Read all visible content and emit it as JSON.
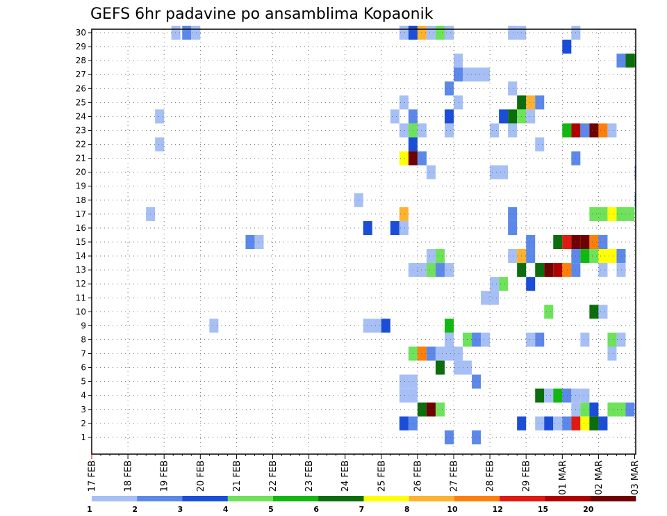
{
  "chart_data": {
    "type": "heatmap",
    "title": "GEFS 6hr padavine po ansamblima Kopaonik",
    "y_range": [
      0,
      30
    ],
    "y_ticks": [
      1,
      2,
      3,
      4,
      5,
      6,
      7,
      8,
      9,
      10,
      11,
      12,
      13,
      14,
      15,
      16,
      17,
      18,
      19,
      20,
      21,
      22,
      23,
      24,
      25,
      26,
      27,
      28,
      29,
      30
    ],
    "x_tick_labels": [
      "17 FEB",
      "18 FEB",
      "19 FEB",
      "20 FEB",
      "21 FEB",
      "22 FEB",
      "23 FEB",
      "24 FEB",
      "25 FEB",
      "26 FEB",
      "27 FEB",
      "28 FEB",
      "29 FEB",
      "01 MAR",
      "02 MAR",
      "03 MAR"
    ],
    "grid": true,
    "legend_placement": "bottom",
    "colorbar": {
      "labels": [
        "1",
        "2",
        "3",
        "4",
        "5",
        "6",
        "7",
        "8",
        "10",
        "12",
        "15",
        "20"
      ],
      "colors": [
        "#a6bff5",
        "#5c88ea",
        "#1a4ed8",
        "#6ee25a",
        "#12b812",
        "#0b6d0b",
        "#ffff00",
        "#ffb22e",
        "#ff7f0a",
        "#e01a10",
        "#b00000",
        "#6e0000"
      ]
    },
    "cells": [
      {
        "day": 19.2,
        "member": 30,
        "level": 1
      },
      {
        "day": 19.5,
        "member": 30,
        "level": 2
      },
      {
        "day": 19.75,
        "member": 30,
        "level": 1
      },
      {
        "day": 25.5,
        "member": 30,
        "level": 1
      },
      {
        "day": 25.75,
        "member": 30,
        "level": 3
      },
      {
        "day": 26,
        "member": 30,
        "level": 8
      },
      {
        "day": 26.25,
        "member": 30,
        "level": 1
      },
      {
        "day": 26.5,
        "member": 30,
        "level": 4
      },
      {
        "day": 26.75,
        "member": 30,
        "level": 1
      },
      {
        "day": 28.5,
        "member": 30,
        "level": 1
      },
      {
        "day": 28.75,
        "member": 30,
        "level": 1
      },
      {
        "day": 30.25,
        "member": 30,
        "level": 1
      },
      {
        "day": 30,
        "member": 29,
        "level": 3
      },
      {
        "day": 27,
        "member": 28,
        "level": 1
      },
      {
        "day": 31.5,
        "member": 28,
        "level": 2
      },
      {
        "day": 31.75,
        "member": 28,
        "level": 6
      },
      {
        "day": 32,
        "member": 28,
        "level": 5
      },
      {
        "day": 27,
        "member": 27,
        "level": 2
      },
      {
        "day": 27.25,
        "member": 27,
        "level": 1
      },
      {
        "day": 27.5,
        "member": 27,
        "level": 1
      },
      {
        "day": 27.75,
        "member": 27,
        "level": 1
      },
      {
        "day": 26.75,
        "member": 26,
        "level": 2
      },
      {
        "day": 28.5,
        "member": 26,
        "level": 1
      },
      {
        "day": 25.5,
        "member": 25,
        "level": 1
      },
      {
        "day": 27,
        "member": 25,
        "level": 1
      },
      {
        "day": 28.75,
        "member": 25,
        "level": 6
      },
      {
        "day": 29,
        "member": 25,
        "level": 8
      },
      {
        "day": 29.25,
        "member": 25,
        "level": 2
      },
      {
        "day": 18.75,
        "member": 24,
        "level": 1
      },
      {
        "day": 25.25,
        "member": 24,
        "level": 1
      },
      {
        "day": 25.75,
        "member": 24,
        "level": 2
      },
      {
        "day": 26.75,
        "member": 24,
        "level": 3
      },
      {
        "day": 28.25,
        "member": 24,
        "level": 3
      },
      {
        "day": 28.5,
        "member": 24,
        "level": 6
      },
      {
        "day": 28.75,
        "member": 24,
        "level": 4
      },
      {
        "day": 29,
        "member": 24,
        "level": 1
      },
      {
        "day": 25.5,
        "member": 23,
        "level": 1
      },
      {
        "day": 25.75,
        "member": 23,
        "level": 4
      },
      {
        "day": 26,
        "member": 23,
        "level": 1
      },
      {
        "day": 26.75,
        "member": 23,
        "level": 1
      },
      {
        "day": 28,
        "member": 23,
        "level": 1
      },
      {
        "day": 28.5,
        "member": 23,
        "level": 1
      },
      {
        "day": 30,
        "member": 23,
        "level": 5
      },
      {
        "day": 30.25,
        "member": 23,
        "level": 11
      },
      {
        "day": 30.5,
        "member": 23,
        "level": 2
      },
      {
        "day": 30.75,
        "member": 23,
        "level": 12
      },
      {
        "day": 31,
        "member": 23,
        "level": 9
      },
      {
        "day": 31.25,
        "member": 23,
        "level": 1
      },
      {
        "day": 18.75,
        "member": 22,
        "level": 1
      },
      {
        "day": 25.75,
        "member": 22,
        "level": 3
      },
      {
        "day": 29.25,
        "member": 22,
        "level": 1
      },
      {
        "day": 25.5,
        "member": 21,
        "level": 7
      },
      {
        "day": 25.75,
        "member": 21,
        "level": 12
      },
      {
        "day": 26,
        "member": 21,
        "level": 2
      },
      {
        "day": 30.25,
        "member": 21,
        "level": 2
      },
      {
        "day": 26.25,
        "member": 20,
        "level": 1
      },
      {
        "day": 28,
        "member": 20,
        "level": 1
      },
      {
        "day": 28.25,
        "member": 20,
        "level": 1
      },
      {
        "day": 32,
        "member": 20,
        "level": 2
      },
      {
        "day": 32.2,
        "member": 20,
        "level": 3
      },
      {
        "day": 24.25,
        "member": 18,
        "level": 1
      },
      {
        "day": 32,
        "member": 18,
        "level": 2
      },
      {
        "day": 18.5,
        "member": 17,
        "level": 1
      },
      {
        "day": 25.5,
        "member": 17,
        "level": 8
      },
      {
        "day": 28.5,
        "member": 17,
        "level": 2
      },
      {
        "day": 30.75,
        "member": 17,
        "level": 4
      },
      {
        "day": 31,
        "member": 17,
        "level": 4
      },
      {
        "day": 31.25,
        "member": 17,
        "level": 7
      },
      {
        "day": 31.5,
        "member": 17,
        "level": 4
      },
      {
        "day": 31.75,
        "member": 17,
        "level": 4
      },
      {
        "day": 32.2,
        "member": 17,
        "level": 3
      },
      {
        "day": 24.5,
        "member": 16,
        "level": 3
      },
      {
        "day": 25.25,
        "member": 16,
        "level": 3
      },
      {
        "day": 25.5,
        "member": 16,
        "level": 1
      },
      {
        "day": 28.5,
        "member": 16,
        "level": 2
      },
      {
        "day": 21.25,
        "member": 15,
        "level": 2
      },
      {
        "day": 21.5,
        "member": 15,
        "level": 1
      },
      {
        "day": 29,
        "member": 15,
        "level": 2
      },
      {
        "day": 29.75,
        "member": 15,
        "level": 6
      },
      {
        "day": 30,
        "member": 15,
        "level": 10
      },
      {
        "day": 30.25,
        "member": 15,
        "level": 12
      },
      {
        "day": 30.5,
        "member": 15,
        "level": 12
      },
      {
        "day": 30.75,
        "member": 15,
        "level": 9
      },
      {
        "day": 31,
        "member": 15,
        "level": 2
      },
      {
        "day": 26.25,
        "member": 14,
        "level": 1
      },
      {
        "day": 26.5,
        "member": 14,
        "level": 4
      },
      {
        "day": 28.5,
        "member": 14,
        "level": 1
      },
      {
        "day": 28.75,
        "member": 14,
        "level": 8
      },
      {
        "day": 29,
        "member": 14,
        "level": 2
      },
      {
        "day": 30.25,
        "member": 14,
        "level": 2
      },
      {
        "day": 30.5,
        "member": 14,
        "level": 5
      },
      {
        "day": 30.75,
        "member": 14,
        "level": 4
      },
      {
        "day": 31,
        "member": 14,
        "level": 7
      },
      {
        "day": 31.25,
        "member": 14,
        "level": 7
      },
      {
        "day": 31.5,
        "member": 14,
        "level": 2
      },
      {
        "day": 25.75,
        "member": 13,
        "level": 1
      },
      {
        "day": 26,
        "member": 13,
        "level": 1
      },
      {
        "day": 26.25,
        "member": 13,
        "level": 4
      },
      {
        "day": 26.5,
        "member": 13,
        "level": 2
      },
      {
        "day": 26.75,
        "member": 13,
        "level": 1
      },
      {
        "day": 28.75,
        "member": 13,
        "level": 6
      },
      {
        "day": 29.25,
        "member": 13,
        "level": 6
      },
      {
        "day": 29.5,
        "member": 13,
        "level": 12
      },
      {
        "day": 29.75,
        "member": 13,
        "level": 11
      },
      {
        "day": 30,
        "member": 13,
        "level": 9
      },
      {
        "day": 30.25,
        "member": 13,
        "level": 2
      },
      {
        "day": 31,
        "member": 13,
        "level": 1
      },
      {
        "day": 31.5,
        "member": 13,
        "level": 1
      },
      {
        "day": 28,
        "member": 12,
        "level": 1
      },
      {
        "day": 28.25,
        "member": 12,
        "level": 4
      },
      {
        "day": 29,
        "member": 12,
        "level": 3
      },
      {
        "day": 27.75,
        "member": 11,
        "level": 1
      },
      {
        "day": 28,
        "member": 11,
        "level": 1
      },
      {
        "day": 29.5,
        "member": 10,
        "level": 4
      },
      {
        "day": 30.75,
        "member": 10,
        "level": 6
      },
      {
        "day": 31,
        "member": 10,
        "level": 1
      },
      {
        "day": 20.25,
        "member": 9,
        "level": 1
      },
      {
        "day": 24.5,
        "member": 9,
        "level": 1
      },
      {
        "day": 24.75,
        "member": 9,
        "level": 1
      },
      {
        "day": 25,
        "member": 9,
        "level": 3
      },
      {
        "day": 26.75,
        "member": 9,
        "level": 5
      },
      {
        "day": 26.75,
        "member": 8,
        "level": 1
      },
      {
        "day": 27.25,
        "member": 8,
        "level": 4
      },
      {
        "day": 27.5,
        "member": 8,
        "level": 2
      },
      {
        "day": 27.75,
        "member": 8,
        "level": 1
      },
      {
        "day": 29,
        "member": 8,
        "level": 1
      },
      {
        "day": 29.25,
        "member": 8,
        "level": 2
      },
      {
        "day": 30.5,
        "member": 8,
        "level": 1
      },
      {
        "day": 31.25,
        "member": 8,
        "level": 4
      },
      {
        "day": 31.5,
        "member": 8,
        "level": 1
      },
      {
        "day": 25.75,
        "member": 7,
        "level": 4
      },
      {
        "day": 26,
        "member": 7,
        "level": 9
      },
      {
        "day": 26.25,
        "member": 7,
        "level": 2
      },
      {
        "day": 26.5,
        "member": 7,
        "level": 1
      },
      {
        "day": 26.75,
        "member": 7,
        "level": 1
      },
      {
        "day": 27,
        "member": 7,
        "level": 1
      },
      {
        "day": 31.25,
        "member": 7,
        "level": 1
      },
      {
        "day": 26.5,
        "member": 6,
        "level": 6
      },
      {
        "day": 27,
        "member": 6,
        "level": 1
      },
      {
        "day": 27.25,
        "member": 6,
        "level": 1
      },
      {
        "day": 25.5,
        "member": 5,
        "level": 1
      },
      {
        "day": 25.75,
        "member": 5,
        "level": 1
      },
      {
        "day": 27.5,
        "member": 5,
        "level": 2
      },
      {
        "day": 25.5,
        "member": 4,
        "level": 1
      },
      {
        "day": 25.75,
        "member": 4,
        "level": 1
      },
      {
        "day": 29.25,
        "member": 4,
        "level": 6
      },
      {
        "day": 29.5,
        "member": 4,
        "level": 1
      },
      {
        "day": 29.75,
        "member": 4,
        "level": 5
      },
      {
        "day": 30,
        "member": 4,
        "level": 2
      },
      {
        "day": 30.25,
        "member": 4,
        "level": 1
      },
      {
        "day": 30.5,
        "member": 4,
        "level": 1
      },
      {
        "day": 26,
        "member": 3,
        "level": 6
      },
      {
        "day": 26.25,
        "member": 3,
        "level": 12
      },
      {
        "day": 26.5,
        "member": 3,
        "level": 4
      },
      {
        "day": 30.25,
        "member": 3,
        "level": 1
      },
      {
        "day": 30.5,
        "member": 3,
        "level": 4
      },
      {
        "day": 30.75,
        "member": 3,
        "level": 3
      },
      {
        "day": 31.25,
        "member": 3,
        "level": 4
      },
      {
        "day": 31.5,
        "member": 3,
        "level": 4
      },
      {
        "day": 31.75,
        "member": 3,
        "level": 2
      },
      {
        "day": 25.5,
        "member": 2,
        "level": 3
      },
      {
        "day": 25.75,
        "member": 2,
        "level": 2
      },
      {
        "day": 28.75,
        "member": 2,
        "level": 3
      },
      {
        "day": 29.25,
        "member": 2,
        "level": 1
      },
      {
        "day": 29.5,
        "member": 2,
        "level": 3
      },
      {
        "day": 29.75,
        "member": 2,
        "level": 1
      },
      {
        "day": 30,
        "member": 2,
        "level": 2
      },
      {
        "day": 30.25,
        "member": 2,
        "level": 10
      },
      {
        "day": 30.5,
        "member": 2,
        "level": 7
      },
      {
        "day": 30.75,
        "member": 2,
        "level": 6
      },
      {
        "day": 31,
        "member": 2,
        "level": 3
      },
      {
        "day": 26.75,
        "member": 1,
        "level": 2
      },
      {
        "day": 27.5,
        "member": 1,
        "level": 2
      }
    ]
  }
}
